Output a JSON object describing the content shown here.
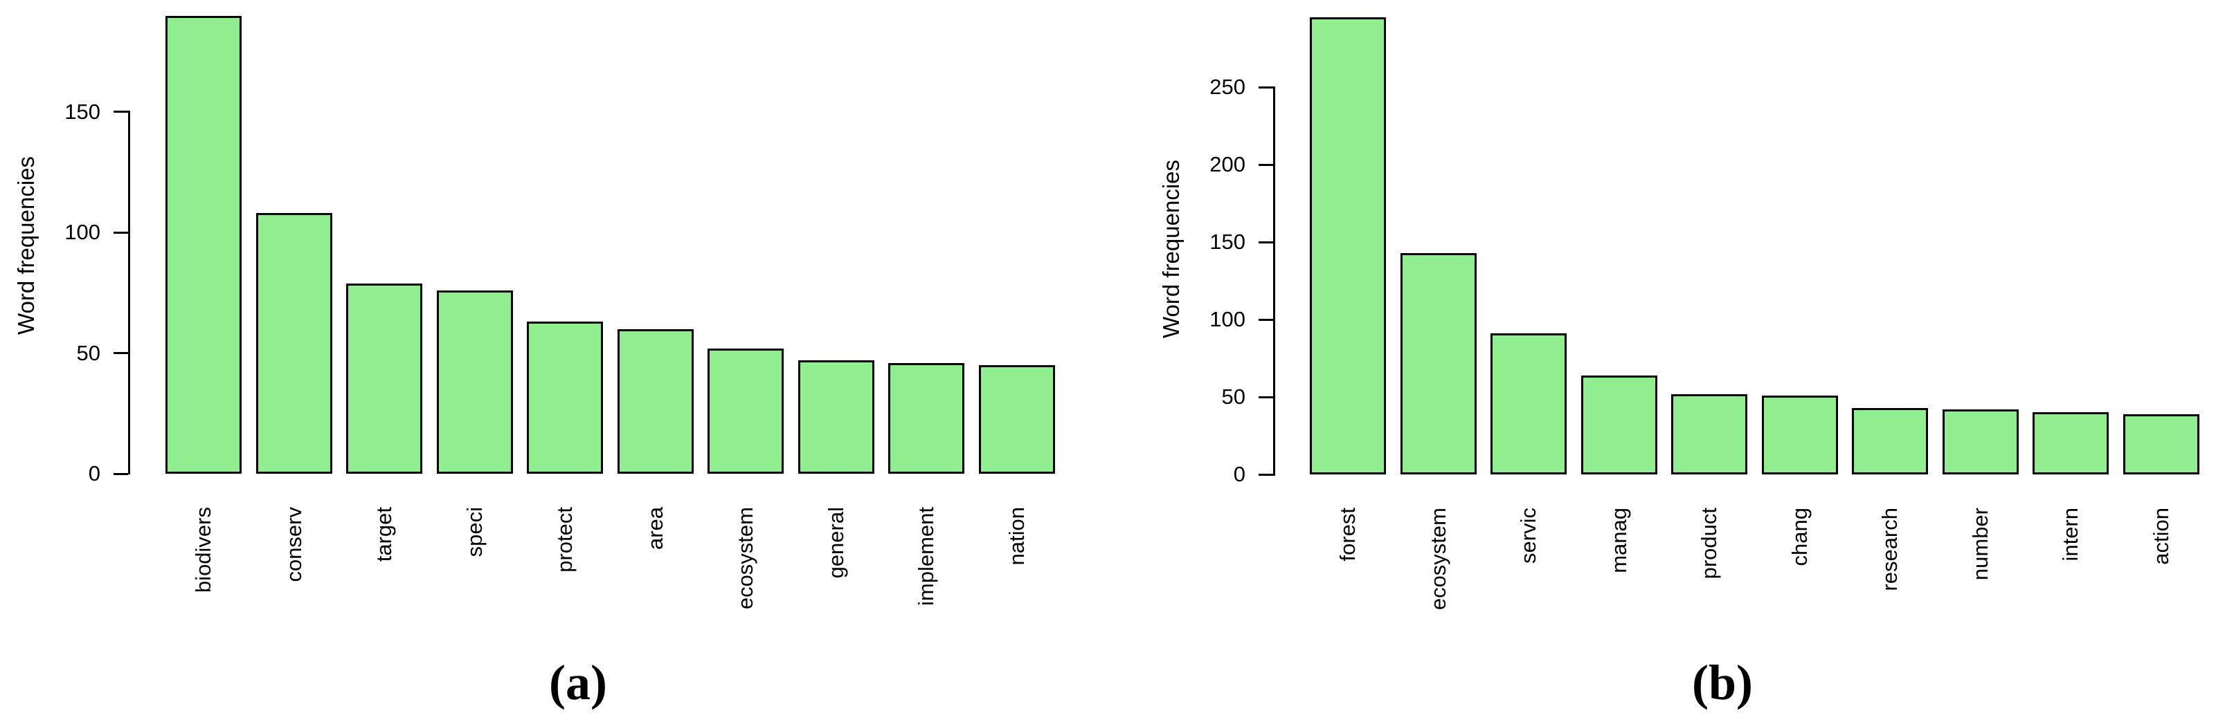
{
  "figure": {
    "background": "#ffffff",
    "bar_fill": "#90ee90",
    "bar_border": "#000000",
    "axis_color": "#000000",
    "text_color": "#000000"
  },
  "chart_data": [
    {
      "id": "a",
      "type": "bar",
      "title": "",
      "caption": "(a)",
      "ylabel": "Word frequencies",
      "xlabel": "",
      "categories": [
        "biodivers",
        "conserv",
        "target",
        "speci",
        "protect",
        "area",
        "ecosystem",
        "general",
        "implement",
        "nation"
      ],
      "values": [
        190,
        108,
        79,
        76,
        63,
        60,
        52,
        47,
        46,
        45
      ],
      "yticks": [
        0,
        50,
        100,
        150
      ],
      "ylim": [
        0,
        190
      ],
      "grid": false,
      "legend": "none"
    },
    {
      "id": "b",
      "type": "bar",
      "title": "",
      "caption": "(b)",
      "ylabel": "Word frequencies",
      "xlabel": "",
      "categories": [
        "forest",
        "ecosystem",
        "servic",
        "manag",
        "product",
        "chang",
        "research",
        "number",
        "intern",
        "action"
      ],
      "values": [
        295,
        143,
        91,
        64,
        52,
        51,
        43,
        42,
        40,
        39
      ],
      "yticks": [
        0,
        50,
        100,
        150,
        200,
        250
      ],
      "ylim": [
        0,
        295
      ],
      "grid": false,
      "legend": "none"
    }
  ]
}
